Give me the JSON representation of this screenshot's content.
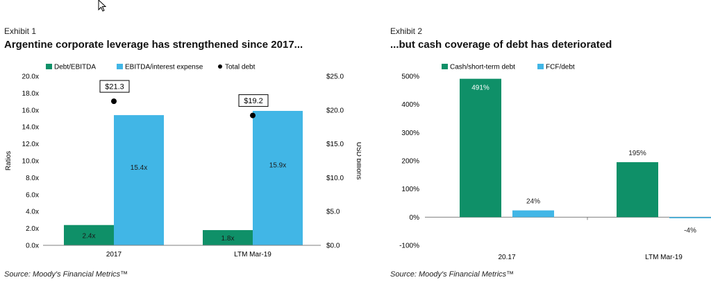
{
  "exhibit1": {
    "label": "Exhibit 1",
    "title": "Argentine corporate leverage has strengthened since 2017...",
    "source": "Source: Moody's Financial Metrics™"
  },
  "exhibit2": {
    "label": "Exhibit 2",
    "title": "...but cash coverage of debt has deteriorated",
    "source": "Source: Moody's Financial Metrics™"
  },
  "chart_data": [
    {
      "type": "bar",
      "categories": [
        "2017",
        "LTM Mar-19"
      ],
      "series": [
        {
          "name": "Debt/EBITDA",
          "values": [
            2.4,
            1.8
          ],
          "labels": [
            "2.4x",
            "1.8x"
          ],
          "color": "#0f9068"
        },
        {
          "name": "EBITDA/interest expense",
          "values": [
            15.4,
            15.9
          ],
          "labels": [
            "15.4x",
            "15.9x"
          ],
          "color": "#41b6e6"
        }
      ],
      "scatter_series": {
        "name": "Total debt",
        "values": [
          21.3,
          19.2
        ],
        "labels": [
          "$21.3",
          "$19.2"
        ],
        "color": "#000000",
        "axis": "right"
      },
      "ylabel": "Ratios",
      "y2label": "USD billions",
      "ylim": [
        0,
        20
      ],
      "y2lim": [
        0,
        25
      ],
      "yticks": [
        "0.0x",
        "2.0x",
        "4.0x",
        "6.0x",
        "8.0x",
        "10.0x",
        "12.0x",
        "14.0x",
        "16.0x",
        "18.0x",
        "20.0x"
      ],
      "y2ticks": [
        "$0.0",
        "$5.0",
        "$10.0",
        "$15.0",
        "$20.0",
        "$25.0"
      ],
      "legend": "top",
      "grid": false
    },
    {
      "type": "bar",
      "categories": [
        "20.17",
        "LTM Mar-19"
      ],
      "series": [
        {
          "name": "Cash/short-term debt",
          "values": [
            491,
            195
          ],
          "labels": [
            "491%",
            "195%"
          ],
          "color": "#0f9068"
        },
        {
          "name": "FCF/debt",
          "values": [
            24,
            -4
          ],
          "labels": [
            "24%",
            "-4%"
          ],
          "color": "#41b6e6"
        }
      ],
      "ylim": [
        -100,
        500
      ],
      "yticks": [
        "-100%",
        "0%",
        "100%",
        "200%",
        "300%",
        "400%",
        "500%"
      ],
      "legend": "top",
      "grid": false
    }
  ]
}
